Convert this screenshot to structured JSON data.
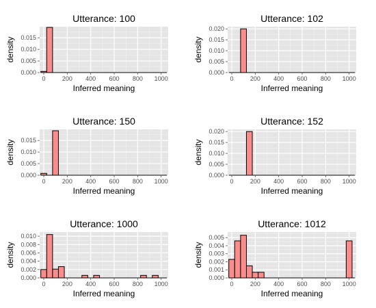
{
  "chart_data": [
    {
      "type": "bar",
      "title": "Utterance: 100",
      "xlabel": "Inferred meaning",
      "ylabel": "density",
      "xlim": [
        -35,
        1060
      ],
      "ylim": [
        0,
        0.0198
      ],
      "xticks": [
        0,
        200,
        400,
        600,
        800,
        1000
      ],
      "xtick_labels": [
        "0",
        "200",
        "400",
        "600",
        "800",
        "1000"
      ],
      "yticks": [
        0,
        0.005,
        0.01,
        0.015
      ],
      "ytick_labels": [
        "0.000",
        "0.005",
        "0.010",
        "0.015"
      ],
      "bin_width": 50,
      "bins": [
        [
          0,
          0.0005
        ],
        [
          50,
          0.0195
        ]
      ],
      "grid": true
    },
    {
      "type": "bar",
      "title": "Utterance: 102",
      "xlabel": "Inferred meaning",
      "ylabel": "density",
      "xlim": [
        -35,
        1060
      ],
      "ylim": [
        0,
        0.021
      ],
      "xticks": [
        0,
        200,
        400,
        600,
        800,
        1000
      ],
      "xtick_labels": [
        "0",
        "200",
        "400",
        "600",
        "800",
        "1000"
      ],
      "yticks": [
        0,
        0.005,
        0.01,
        0.015,
        0.02
      ],
      "ytick_labels": [
        "0.000",
        "0.005",
        "0.010",
        "0.015",
        "0.020"
      ],
      "bin_width": 50,
      "bins": [
        [
          100,
          0.02
        ]
      ],
      "grid": true
    },
    {
      "type": "bar",
      "title": "Utterance: 150",
      "xlabel": "Inferred meaning",
      "ylabel": "density",
      "xlim": [
        -35,
        1060
      ],
      "ylim": [
        0,
        0.0198
      ],
      "xticks": [
        0,
        200,
        400,
        600,
        800,
        1000
      ],
      "xtick_labels": [
        "0",
        "200",
        "400",
        "600",
        "800",
        "1000"
      ],
      "yticks": [
        0,
        0.005,
        0.01,
        0.015
      ],
      "ytick_labels": [
        "0.000",
        "0.005",
        "0.010",
        "0.015"
      ],
      "bin_width": 50,
      "bins": [
        [
          0,
          0.0008
        ],
        [
          100,
          0.0192
        ]
      ],
      "grid": true
    },
    {
      "type": "bar",
      "title": "Utterance: 152",
      "xlabel": "Inferred meaning",
      "ylabel": "density",
      "xlim": [
        -35,
        1060
      ],
      "ylim": [
        0,
        0.021
      ],
      "xticks": [
        0,
        200,
        400,
        600,
        800,
        1000
      ],
      "xtick_labels": [
        "0",
        "200",
        "400",
        "600",
        "800",
        "1000"
      ],
      "yticks": [
        0,
        0.005,
        0.01,
        0.015,
        0.02
      ],
      "ytick_labels": [
        "0.000",
        "0.005",
        "0.010",
        "0.015",
        "0.020"
      ],
      "bin_width": 50,
      "bins": [
        [
          150,
          0.02
        ]
      ],
      "grid": true
    },
    {
      "type": "bar",
      "title": "Utterance: 1000",
      "xlabel": "Inferred meaning",
      "ylabel": "density",
      "xlim": [
        -35,
        1060
      ],
      "ylim": [
        0,
        0.011
      ],
      "xticks": [
        0,
        200,
        400,
        600,
        800,
        1000
      ],
      "xtick_labels": [
        "0",
        "200",
        "400",
        "600",
        "800",
        "1000"
      ],
      "yticks": [
        0,
        0.002,
        0.004,
        0.006,
        0.008,
        0.01
      ],
      "ytick_labels": [
        "0.000",
        "0.002",
        "0.004",
        "0.006",
        "0.008",
        "0.010"
      ],
      "bin_width": 50,
      "bins": [
        [
          0,
          0.002
        ],
        [
          50,
          0.0104
        ],
        [
          100,
          0.0021
        ],
        [
          150,
          0.0027
        ],
        [
          350,
          0.0006
        ],
        [
          450,
          0.0006
        ],
        [
          850,
          0.0006
        ],
        [
          950,
          0.0006
        ]
      ],
      "grid": true
    },
    {
      "type": "bar",
      "title": "Utterance: 1012",
      "xlabel": "Inferred meaning",
      "ylabel": "density",
      "xlim": [
        -35,
        1060
      ],
      "ylim": [
        0,
        0.0057
      ],
      "xticks": [
        0,
        200,
        400,
        600,
        800,
        1000
      ],
      "xtick_labels": [
        "0",
        "200",
        "400",
        "600",
        "800",
        "1000"
      ],
      "yticks": [
        0,
        0.001,
        0.002,
        0.003,
        0.004,
        0.005
      ],
      "ytick_labels": [
        "0.000",
        "0.001",
        "0.002",
        "0.003",
        "0.004",
        "0.005"
      ],
      "bin_width": 50,
      "bins": [
        [
          0,
          0.0023
        ],
        [
          50,
          0.0046
        ],
        [
          100,
          0.0053
        ],
        [
          150,
          0.0015
        ],
        [
          200,
          0.0007
        ],
        [
          250,
          0.0007
        ],
        [
          1000,
          0.0046
        ]
      ],
      "grid": true
    }
  ],
  "style": {
    "panel_bg": "#e5e5e5",
    "grid_major": "#ffffff",
    "grid_minor": "#f2f2f2",
    "bar_fill": "#fb8c8c",
    "bar_stroke": "#000000",
    "tick_color": "#4d4d4d"
  }
}
